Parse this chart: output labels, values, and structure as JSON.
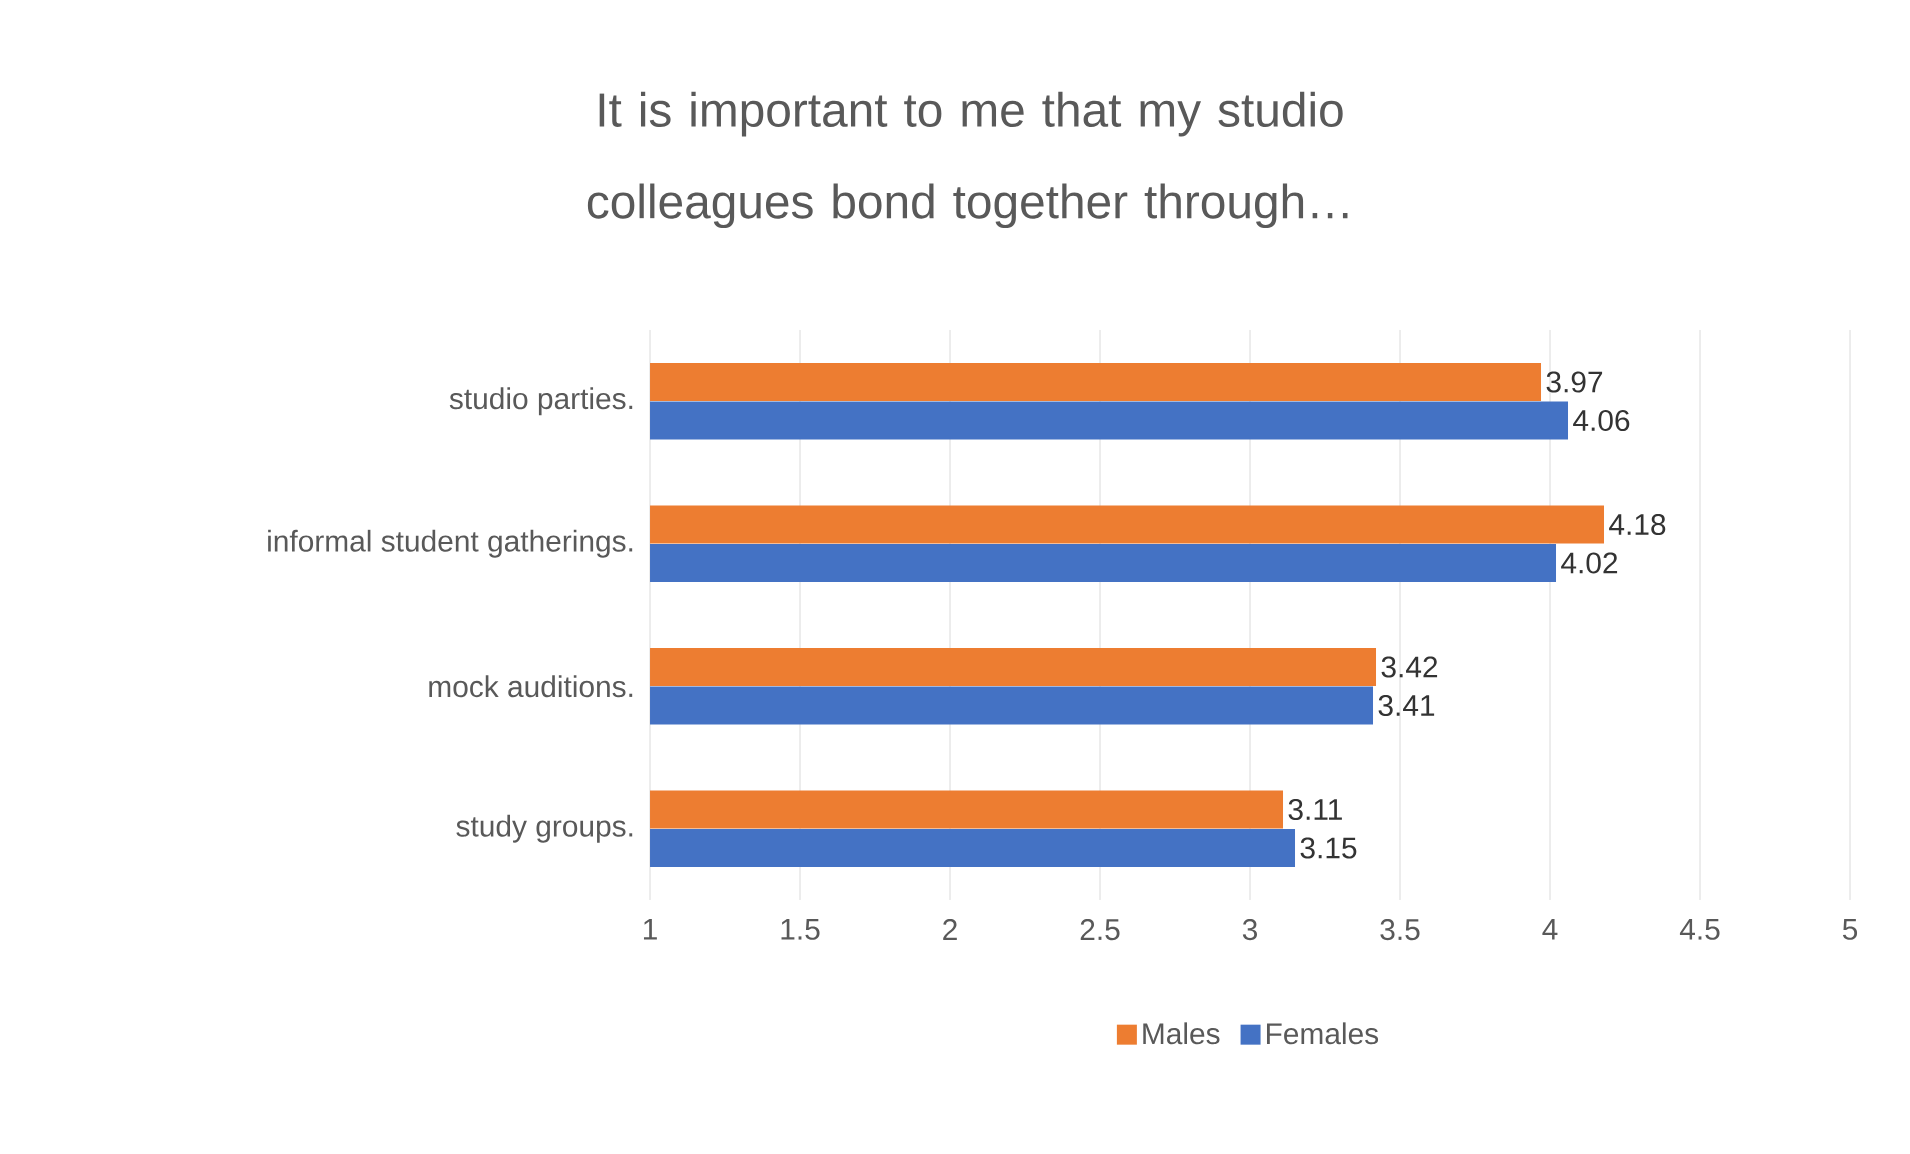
{
  "chart_data": {
    "type": "bar",
    "orientation": "horizontal",
    "title": "It is important to me that my studio colleagues bond together through…",
    "categories": [
      "studio parties.",
      "informal student gatherings.",
      "mock auditions.",
      "study groups."
    ],
    "series": [
      {
        "name": "Males",
        "color": "#ed7d31",
        "values": [
          3.97,
          4.18,
          3.42,
          3.11
        ]
      },
      {
        "name": "Females",
        "color": "#4472c4",
        "values": [
          4.06,
          4.02,
          3.41,
          3.15
        ]
      }
    ],
    "xlim": [
      1,
      5
    ],
    "xticks": [
      1,
      1.5,
      2,
      2.5,
      3,
      3.5,
      4,
      4.5,
      5
    ],
    "grid": "x",
    "legend": "bottom",
    "data_labels": true
  }
}
